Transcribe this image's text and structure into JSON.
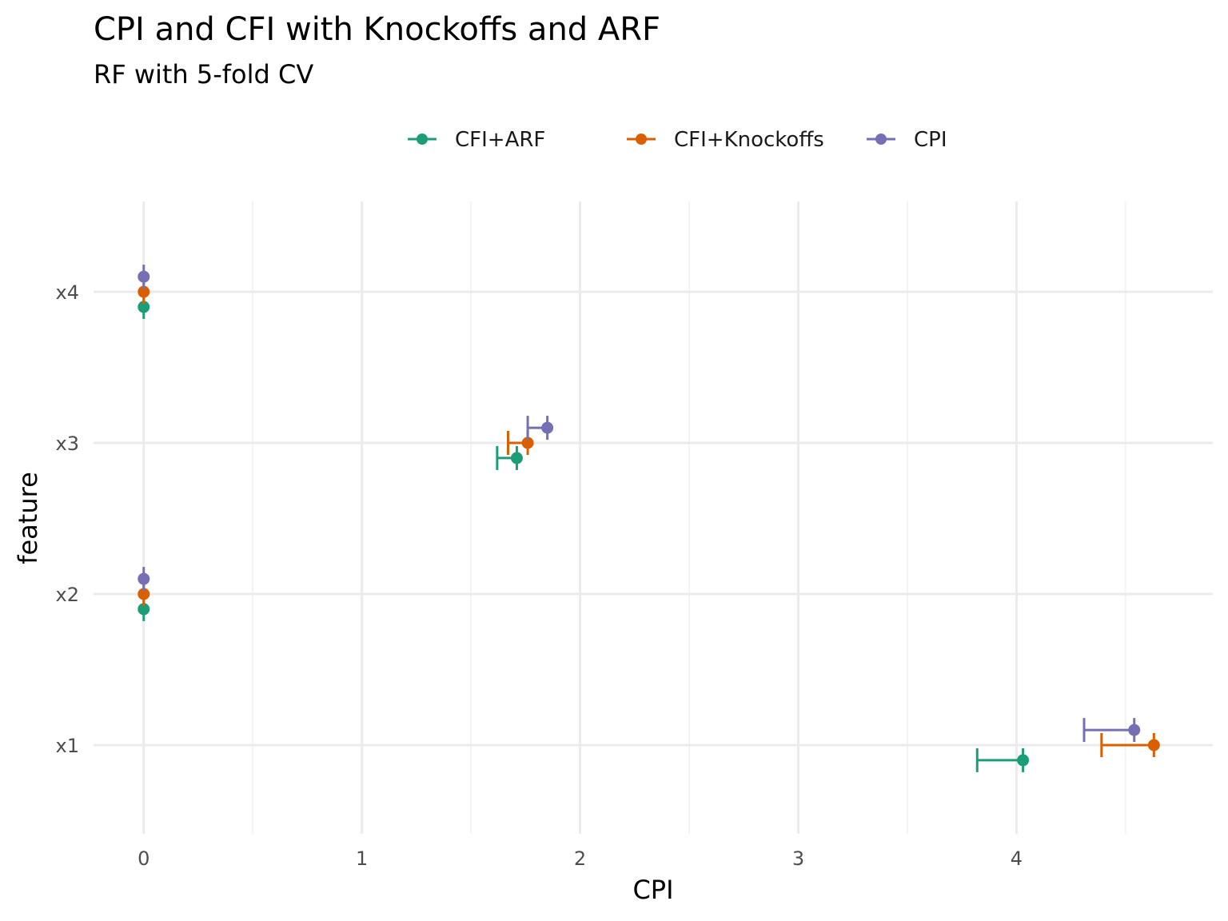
{
  "chart_data": {
    "type": "scatter",
    "title": "CPI and CFI with Knockoffs and ARF",
    "subtitle": "RF with 5-fold CV",
    "xlabel": "CPI",
    "ylabel": "feature",
    "categories": [
      "x1",
      "x2",
      "x3",
      "x4"
    ],
    "x_ticks": [
      "0",
      "1",
      "2",
      "3",
      "4"
    ],
    "xlim": [
      -0.23,
      4.9
    ],
    "grid": true,
    "legend_position": "top",
    "series": [
      {
        "name": "CFI+ARF",
        "color": "#1b9e77",
        "points": [
          {
            "feature": "x1",
            "value": 4.03,
            "lower": 3.82,
            "upper": 4.03
          },
          {
            "feature": "x2",
            "value": 0.0,
            "lower": 0.0,
            "upper": 0.0
          },
          {
            "feature": "x3",
            "value": 1.71,
            "lower": 1.62,
            "upper": 1.71
          },
          {
            "feature": "x4",
            "value": 0.0,
            "lower": 0.0,
            "upper": 0.0
          }
        ]
      },
      {
        "name": "CFI+Knockoffs",
        "color": "#d95f02",
        "points": [
          {
            "feature": "x1",
            "value": 4.63,
            "lower": 4.39,
            "upper": 4.63
          },
          {
            "feature": "x2",
            "value": 0.0,
            "lower": 0.0,
            "upper": 0.0
          },
          {
            "feature": "x3",
            "value": 1.76,
            "lower": 1.67,
            "upper": 1.76
          },
          {
            "feature": "x4",
            "value": 0.0,
            "lower": 0.0,
            "upper": 0.0
          }
        ]
      },
      {
        "name": "CPI",
        "color": "#7570b3",
        "points": [
          {
            "feature": "x1",
            "value": 4.54,
            "lower": 4.31,
            "upper": 4.54
          },
          {
            "feature": "x2",
            "value": 0.0,
            "lower": 0.0,
            "upper": 0.0
          },
          {
            "feature": "x3",
            "value": 1.85,
            "lower": 1.76,
            "upper": 1.85
          },
          {
            "feature": "x4",
            "value": 0.0,
            "lower": 0.0,
            "upper": 0.0
          }
        ]
      }
    ]
  }
}
